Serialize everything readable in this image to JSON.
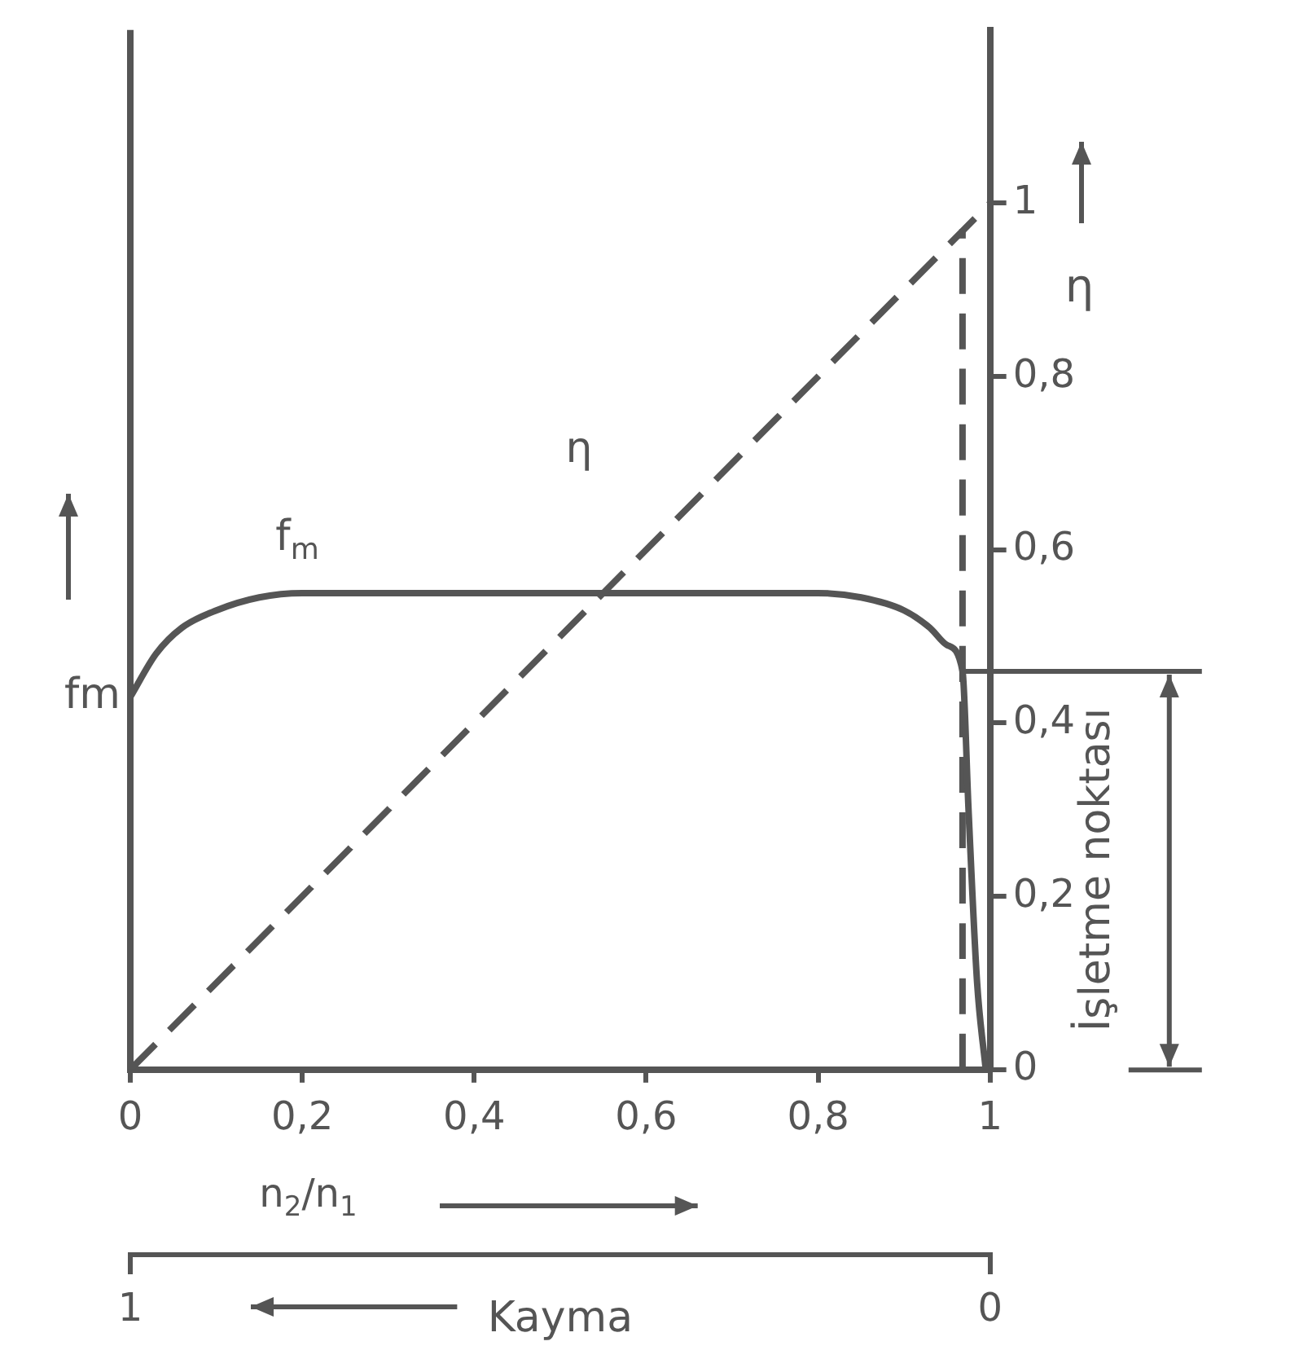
{
  "chart_data": {
    "type": "line",
    "xlabel": "n$_{2}$/n$_{1}$",
    "ylabel": "η",
    "x2label": "Kayma",
    "xlim": [
      0,
      1
    ],
    "xticks": [
      0,
      {
        "value": 0.2,
        "label": "0,2"
      },
      {
        "value": 0.4,
        "label": "0,4"
      },
      {
        "value": 0.6,
        "label": "0,6"
      },
      {
        "value": 0.8,
        "label": "0,8"
      },
      1
    ],
    "x2lim": [
      1,
      0
    ],
    "x2ticks": [
      1,
      0
    ],
    "ylim": [
      0,
      1.2
    ],
    "yticks": [
      0,
      {
        "value": 0.2,
        "label": "0,2"
      },
      {
        "value": 0.4,
        "label": "0,4"
      },
      {
        "value": 0.6,
        "label": "0,6"
      },
      {
        "value": 0.8,
        "label": "0,8"
      },
      1
    ],
    "series": [
      {
        "name": "η",
        "color": "#555555",
        "line_style": "dashed",
        "x": [
          0,
          1
        ],
        "values": [
          0,
          1
        ]
      },
      {
        "name": "f$_{m}$",
        "color": "#555555",
        "line_style": "solid",
        "x": [
          0,
          0.03,
          0.06,
          0.1,
          0.15,
          0.2,
          0.5,
          0.8,
          0.85,
          0.9,
          0.93,
          0.95,
          0.968,
          0.975,
          0.985,
          0.995
        ],
        "values": [
          0.43,
          0.48,
          0.51,
          0.53,
          0.545,
          0.55,
          0.55,
          0.55,
          0.545,
          0.53,
          0.51,
          0.49,
          0.46,
          0.3,
          0.1,
          0
        ]
      },
      {
        "color": "#555555",
        "line_style": "dashed",
        "x": [
          0.968,
          0.968
        ],
        "values": [
          0,
          0.97
        ]
      }
    ],
    "annotations": [
      "fm",
      {
        "text": "İşletme noktası",
        "x": 0.968,
        "y": 0.46
      }
    ],
    "grid": false,
    "legend": false,
    "marker": "none"
  }
}
